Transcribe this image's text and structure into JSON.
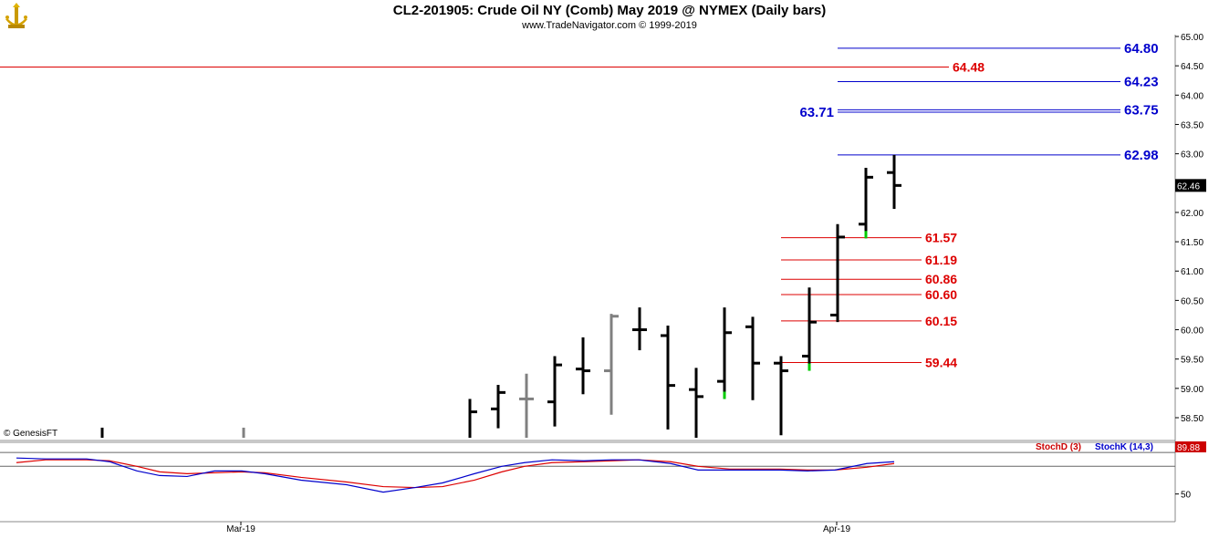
{
  "header": {
    "title": "CL2-201905:  Crude Oil NY (Comb) May 2019 @ NYMEX  (Daily bars)",
    "subtitle": "www.TradeNavigator.com © 1999-2019",
    "watermark": "© GenesisFT"
  },
  "colors": {
    "background": "#ffffff",
    "panel_border": "#c8c8c8",
    "bar": "#000000",
    "bar_gray": "#808080",
    "bar_green": "#00cc00",
    "level_blue": "#0000cc",
    "level_red": "#dd0000",
    "stoch_k": "#0000cc",
    "stoch_d": "#cc0000"
  },
  "chart_data": [
    {
      "type": "ohlc",
      "title": "CL2-201905:  Crude Oil NY (Comb) May 2019 @ NYMEX  (Daily bars)",
      "y_axis": {
        "ylim": [
          58.1,
          65.15
        ],
        "ticks": [
          "65.00",
          "64.50",
          "64.00",
          "63.50",
          "63.00",
          "62.50",
          "62.00",
          "61.50",
          "61.00",
          "60.50",
          "60.00",
          "59.50",
          "59.00",
          "58.50"
        ],
        "last_price_label": "62.46"
      },
      "x_axis": {
        "tick_labels": [
          "Mar-19",
          "Apr-19"
        ]
      },
      "bars": [
        {
          "x": 112,
          "o": null,
          "h": 58.33,
          "l": 58.15,
          "c": null,
          "color": "black"
        },
        {
          "x": 267,
          "o": null,
          "h": 58.33,
          "l": 58.15,
          "c": null,
          "color": "gray"
        },
        {
          "x": 515,
          "o": null,
          "h": 58.82,
          "l": 58.15,
          "c": 58.6,
          "color": "black"
        },
        {
          "x": 546,
          "o": 58.65,
          "h": 59.06,
          "l": 58.32,
          "c": 58.93,
          "color": "black"
        },
        {
          "x": 577,
          "o": 58.82,
          "h": 59.25,
          "l": 58.15,
          "c": 58.82,
          "color": "gray"
        },
        {
          "x": 608,
          "o": 58.77,
          "h": 59.55,
          "l": 58.35,
          "c": 59.4,
          "color": "black"
        },
        {
          "x": 639,
          "o": 59.33,
          "h": 59.87,
          "l": 58.9,
          "c": 59.3,
          "color": "black"
        },
        {
          "x": 670,
          "o": 59.3,
          "h": 60.27,
          "l": 58.55,
          "c": 60.23,
          "color": "gray"
        },
        {
          "x": 701,
          "o": 60.0,
          "h": 60.38,
          "l": 59.65,
          "c": 60.0,
          "color": "black"
        },
        {
          "x": 732,
          "o": 59.9,
          "h": 60.07,
          "l": 58.3,
          "c": 59.05,
          "color": "black"
        },
        {
          "x": 763,
          "o": 58.98,
          "h": 59.35,
          "l": 58.15,
          "c": 58.86,
          "color": "black"
        },
        {
          "x": 794,
          "o": 59.12,
          "h": 60.38,
          "l": 58.82,
          "c": 59.95,
          "color": "black",
          "low_color": "green"
        },
        {
          "x": 825,
          "o": 60.05,
          "h": 60.22,
          "l": 58.8,
          "c": 59.43,
          "color": "black"
        },
        {
          "x": 856,
          "o": 59.43,
          "h": 59.55,
          "l": 58.2,
          "c": 59.3,
          "color": "black"
        },
        {
          "x": 887,
          "o": 59.55,
          "h": 60.72,
          "l": 59.3,
          "c": 60.13,
          "color": "black",
          "low_color": "green"
        },
        {
          "x": 918,
          "o": 60.25,
          "h": 61.8,
          "l": 60.13,
          "c": 61.58,
          "color": "black"
        },
        {
          "x": 949,
          "o": 61.8,
          "h": 62.76,
          "l": 61.56,
          "c": 62.6,
          "color": "black",
          "low_color": "green"
        },
        {
          "x": 980,
          "o": 62.68,
          "h": 62.98,
          "l": 62.06,
          "c": 62.46,
          "color": "black"
        }
      ],
      "levels": [
        {
          "value": 64.8,
          "label": "64.80",
          "color": "blue",
          "from_x": 918
        },
        {
          "value": 64.48,
          "label": "64.48",
          "color": "red",
          "from_x": 0
        },
        {
          "value": 64.23,
          "label": "64.23",
          "color": "blue",
          "from_x": 918
        },
        {
          "value": 63.75,
          "label": "63.75",
          "color": "blue",
          "from_x": 918
        },
        {
          "value": 63.71,
          "label": "63.71",
          "color": "blue",
          "from_x": 918,
          "label_side": "left"
        },
        {
          "value": 62.98,
          "label": "62.98",
          "color": "blue",
          "from_x": 918
        },
        {
          "value": 61.57,
          "label": "61.57",
          "color": "red",
          "from_x": 856
        },
        {
          "value": 61.19,
          "label": "61.19",
          "color": "red",
          "from_x": 856
        },
        {
          "value": 60.86,
          "label": "60.86",
          "color": "red",
          "from_x": 856
        },
        {
          "value": 60.6,
          "label": "60.60",
          "color": "red",
          "from_x": 856
        },
        {
          "value": 60.15,
          "label": "60.15",
          "color": "red",
          "from_x": 856
        },
        {
          "value": 59.44,
          "label": "59.44",
          "color": "red",
          "from_x": 856
        }
      ]
    },
    {
      "type": "line",
      "legend": [
        "StochD (3)",
        "StochK (14,3)"
      ],
      "y_axis": {
        "ylim": [
          20,
          105
        ],
        "ticks": [
          "50"
        ],
        "last_value_label": "89.88"
      },
      "series": [
        {
          "name": "StochK (14,3)",
          "color": "blue",
          "points": [
            [
              18,
              89
            ],
            [
              50,
              88
            ],
            [
              95,
              88
            ],
            [
              120,
              85
            ],
            [
              150,
              75
            ],
            [
              175,
              70
            ],
            [
              205,
              69
            ],
            [
              235,
              75
            ],
            [
              265,
              75
            ],
            [
              290,
              72
            ],
            [
              330,
              65
            ],
            [
              380,
              60
            ],
            [
              420,
              52
            ],
            [
              455,
              57
            ],
            [
              485,
              62
            ],
            [
              520,
              72
            ],
            [
              550,
              80
            ],
            [
              575,
              84
            ],
            [
              605,
              87
            ],
            [
              640,
              86
            ],
            [
              670,
              87
            ],
            [
              700,
              87
            ],
            [
              735,
              83
            ],
            [
              765,
              76
            ],
            [
              800,
              76
            ],
            [
              825,
              76
            ],
            [
              855,
              76
            ],
            [
              885,
              75
            ],
            [
              915,
              76
            ],
            [
              950,
              83
            ],
            [
              980,
              85
            ]
          ]
        },
        {
          "name": "StochD (3)",
          "color": "red",
          "points": [
            [
              18,
              84
            ],
            [
              50,
              87
            ],
            [
              95,
              87
            ],
            [
              120,
              86
            ],
            [
              150,
              80
            ],
            [
              175,
              74
            ],
            [
              205,
              72
            ],
            [
              235,
              73
            ],
            [
              265,
              74
            ],
            [
              290,
              73
            ],
            [
              330,
              68
            ],
            [
              380,
              63
            ],
            [
              420,
              58
            ],
            [
              455,
              57
            ],
            [
              485,
              58
            ],
            [
              520,
              65
            ],
            [
              550,
              74
            ],
            [
              575,
              80
            ],
            [
              605,
              84
            ],
            [
              640,
              85
            ],
            [
              670,
              86
            ],
            [
              700,
              87
            ],
            [
              735,
              85
            ],
            [
              765,
              80
            ],
            [
              800,
              77
            ],
            [
              825,
              77
            ],
            [
              855,
              77
            ],
            [
              885,
              76
            ],
            [
              915,
              76
            ],
            [
              950,
              79
            ],
            [
              980,
              83
            ]
          ]
        }
      ]
    }
  ]
}
